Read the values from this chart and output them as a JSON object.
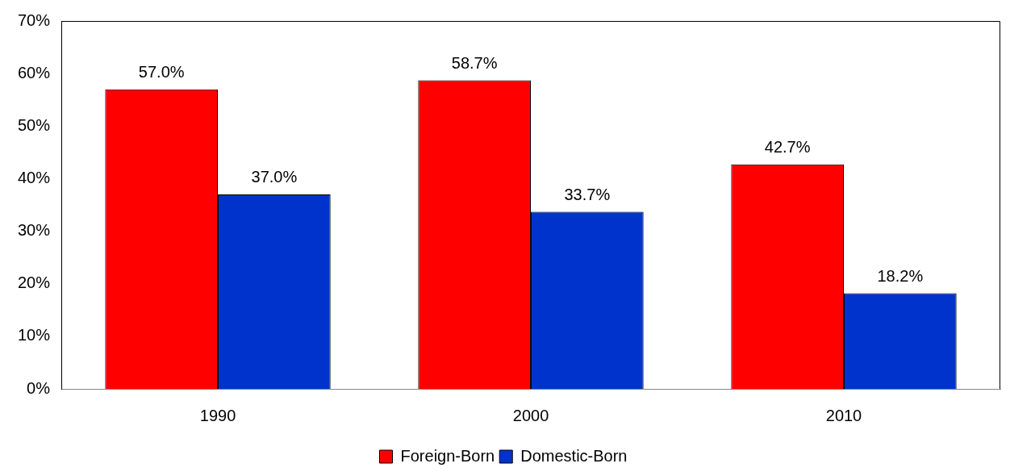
{
  "chart_data": {
    "type": "bar",
    "categories": [
      "1990",
      "2000",
      "2010"
    ],
    "series": [
      {
        "name": "Foreign-Born",
        "color": "#ff0000",
        "values": [
          57.0,
          58.7,
          42.7
        ],
        "value_labels": [
          "57.0%",
          "58.7%",
          "42.7%"
        ]
      },
      {
        "name": "Domestic-Born",
        "color": "#0033cc",
        "values": [
          37.0,
          33.7,
          18.2
        ],
        "value_labels": [
          "37.0%",
          "33.7%",
          "18.2%"
        ]
      }
    ],
    "ylim": [
      0,
      70
    ],
    "yticks": [
      {
        "value": 0,
        "label": "0%"
      },
      {
        "value": 10,
        "label": "10%"
      },
      {
        "value": 20,
        "label": "20%"
      },
      {
        "value": 30,
        "label": "30%"
      },
      {
        "value": 40,
        "label": "40%"
      },
      {
        "value": 50,
        "label": "50%"
      },
      {
        "value": 60,
        "label": "60%"
      },
      {
        "value": 70,
        "label": "70%"
      }
    ],
    "grid": false,
    "legend": "bottom"
  }
}
